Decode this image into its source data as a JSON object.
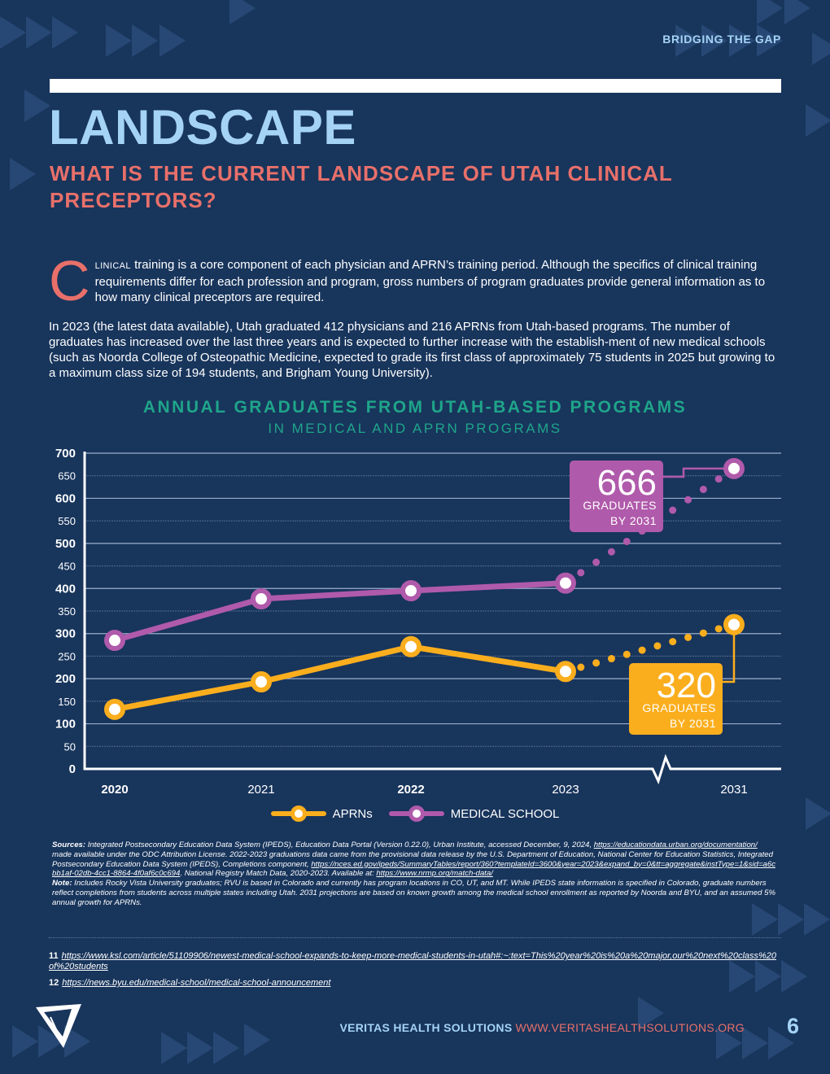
{
  "header": {
    "running_head": "BRIDGING THE GAP",
    "title": "LANDSCAPE",
    "subtitle": "WHAT IS THE CURRENT LANDSCAPE OF UTAH CLINICAL PRECEPTORS?"
  },
  "body": {
    "dropcap": "C",
    "lead_smallcaps": "linical",
    "lead_rest": " training is a core component of each physician and APRN’s training period. Although the specifics of clinical training requirements differ for each profession and program, gross numbers of program graduates provide general information as to how many clinical preceptors are required.",
    "para2": "In 2023 (the latest data available), Utah graduated 412 physicians and 216 APRNs from Utah-based programs. The number of graduates has increased over the last three years and is expected to further increase with the establish-ment of new medical schools (such as Noorda College of Osteopathic Medicine, expected to grade its first class of approximately 75 students in 2025 but growing to a maximum class size of 194 students, and Brigham Young University)."
  },
  "chart_data": {
    "type": "line",
    "title": "ANNUAL GRADUATES FROM UTAH-BASED PROGRAMS",
    "subtitle": "IN MEDICAL AND APRN PROGRAMS",
    "xlabel": "",
    "ylabel": "",
    "categories": [
      "2020",
      "2021",
      "2022",
      "2023",
      "2031"
    ],
    "category_bold": [
      true,
      false,
      true,
      false,
      false
    ],
    "axis_break_between": [
      "2023",
      "2031"
    ],
    "ylim": [
      0,
      700
    ],
    "yticks": [
      0,
      50,
      100,
      150,
      200,
      250,
      300,
      350,
      400,
      450,
      500,
      550,
      600,
      650,
      700
    ],
    "ytick_major_every": 100,
    "grid": true,
    "series": [
      {
        "name": "APRNs",
        "color": "#fbae1d",
        "values": [
          132,
          193,
          271,
          216,
          320
        ],
        "projected_from_index": 3
      },
      {
        "name": "MEDICAL SCHOOL",
        "color": "#b05aab",
        "values": [
          285,
          377,
          395,
          412,
          666
        ],
        "projected_from_index": 3
      }
    ],
    "annotations": [
      {
        "series": "MEDICAL SCHOOL",
        "value": "666",
        "line1": "GRADUATES",
        "line2": "BY 2031",
        "color": "#b05aab"
      },
      {
        "series": "APRNs",
        "value": "320",
        "line1": "GRADUATES",
        "line2": "BY 2031",
        "color": "#fbae1d"
      }
    ],
    "legend": [
      "APRNs",
      "MEDICAL SCHOOL"
    ],
    "legend_position": "bottom-center"
  },
  "sources": {
    "label": "Sources:",
    "text1": " Integrated Postsecondary Education Data System (IPEDS), Education Data Portal (Version 0.22.0), Urban Institute, accessed December, 9, 2024, ",
    "link1": "https://educationdata.urban.org/documentation/",
    "text2": " made available under the ODC Attribution License. 2022-2023 graduations data came from the provisional data release by the U.S. Department of Education, National Center for Education Statistics, Integrated Postsecondary Education Data System (IPEDS), Completions component, ",
    "link2": "https://nces.ed.gov/ipeds/SummaryTables/report/360?templateId=3600&year=2023&expand_by=0&tt=aggregate&instType=1&sid=a6cbb1af-02db-4cc1-8864-4f0af6c0c694",
    "text3": ". National Registry Match Data, 2020-2023. Available at: ",
    "link3": "https://www.nrmp.org/match-data/",
    "note_label": "Note:",
    "note_text": " Includes Rocky Vista University graduates; RVU is based in Colorado and currently has program locations in CO, UT, and MT. While IPEDS state information is specified in Colorado, graduate numbers reflect completions from students across multiple states including Utah. 2031 projections are based on known growth among the medical school enrollment as reported by Noorda and BYU, and an assumed 5% annual growth for APRNs."
  },
  "footnotes": [
    {
      "num": "11",
      "url": "https://www.ksl.com/article/51109906/newest-medical-school-expands-to-keep-more-medical-students-in-utah#:~:text=This%20year%20is%20a%20major,our%20next%20class%20of%20students"
    },
    {
      "num": "12",
      "url": "https://news.byu.edu/medical-school/medical-school-announcement"
    }
  ],
  "footer": {
    "org": "VERITAS HEALTH SOLUTIONS",
    "url": "WWW.VERITASHEALTHSOLUTIONS.ORG",
    "page_number": "6",
    "logo_icon": "veritas-triangle-logo"
  },
  "colors": {
    "background": "#18355c",
    "title_blue": "#a4d3f5",
    "coral": "#e8706a",
    "teal": "#1fa58a",
    "aprn": "#fbae1d",
    "medical": "#b05aab"
  }
}
